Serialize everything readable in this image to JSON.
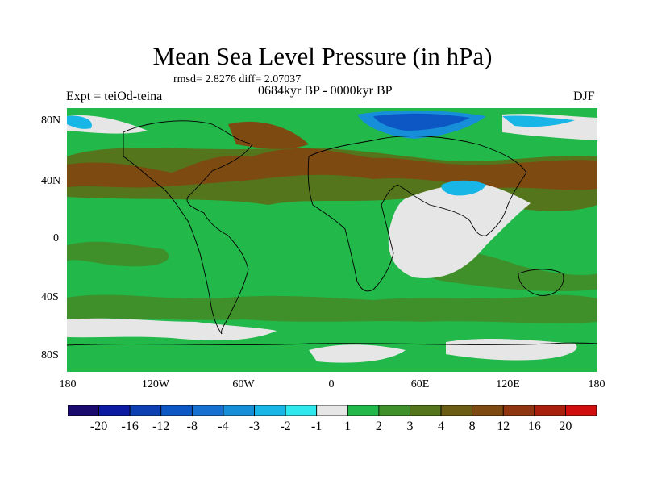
{
  "title": "Mean Sea Level Pressure (in hPa)",
  "stats": "rmsd= 2.8276 diff= 2.07037",
  "experiment": "Expt = teiOd-teina",
  "period": "0684kyr BP - 0000kyr BP",
  "season": "DJF",
  "lat_labels": [
    "80N",
    "40N",
    "0",
    "40S",
    "80S"
  ],
  "lon_labels": [
    "180",
    "120W",
    "60W",
    "0",
    "60E",
    "120E",
    "180"
  ],
  "colorbar": {
    "colors": [
      "#1a0a6e",
      "#0b1aa0",
      "#0d3fb3",
      "#0d57c4",
      "#1670d0",
      "#168fd8",
      "#17b6e6",
      "#2ee8ee",
      "#e6e6e6",
      "#22b84a",
      "#3f8f2a",
      "#54751c",
      "#6b5e14",
      "#7d4a12",
      "#8f3510",
      "#a8200d",
      "#d00e0e"
    ],
    "labels": [
      "-20",
      "-16",
      "-12",
      "-8",
      "-4",
      "-3",
      "-2",
      "-1",
      "1",
      "2",
      "3",
      "4",
      "8",
      "12",
      "16",
      "20"
    ]
  },
  "map_colors": {
    "ocean_base": "#22b84a",
    "positive_3": "#3f8f2a",
    "positive_4": "#54751c",
    "positive_8": "#7d4a12",
    "near_zero": "#e6e6e6",
    "negative_2": "#17b6e6",
    "negative_3": "#168fd8",
    "negative_8": "#0d57c4"
  }
}
